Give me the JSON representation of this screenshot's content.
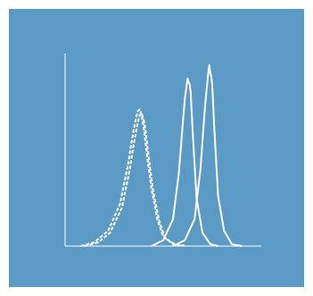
{
  "colors": {
    "panel_background": "#5a9ac4",
    "ink": "#ffffff"
  },
  "chart_data": {
    "type": "line",
    "title": "",
    "xlabel": "",
    "ylabel": "",
    "x_ticks": [],
    "y_ticks": [],
    "xlim": [
      0,
      100
    ],
    "ylim": [
      0,
      100
    ],
    "grid": false,
    "legend": "none",
    "series": [
      {
        "line_style": "dashed",
        "x": [
          8,
          15,
          22,
          28,
          32,
          34,
          36,
          37,
          38,
          39,
          40,
          42,
          44,
          47,
          50,
          55,
          60
        ],
        "y": [
          0,
          2,
          8,
          22,
          42,
          55,
          66,
          70,
          71,
          68,
          62,
          45,
          30,
          14,
          5,
          1,
          0
        ]
      },
      {
        "line_style": "dashed",
        "x": [
          10,
          17,
          23,
          29,
          33,
          35,
          37,
          38,
          39,
          40,
          41,
          43,
          45,
          48,
          51,
          56,
          62
        ],
        "y": [
          0,
          2,
          7,
          20,
          40,
          53,
          64,
          68,
          69,
          66,
          60,
          43,
          28,
          13,
          4,
          1,
          0
        ]
      },
      {
        "line_style": "solid",
        "x": [
          44,
          50,
          55,
          58,
          60,
          61,
          62,
          62.5,
          63,
          63.5,
          64,
          65,
          67,
          70,
          74,
          78
        ],
        "y": [
          0,
          3,
          14,
          38,
          64,
          76,
          84,
          87,
          85,
          84,
          80,
          60,
          25,
          7,
          1,
          0
        ]
      },
      {
        "line_style": "solid",
        "x": [
          55,
          61,
          66,
          69,
          71,
          72,
          73,
          73.5,
          74,
          74.5,
          75,
          76,
          78,
          81,
          85,
          90
        ],
        "y": [
          0,
          3,
          14,
          40,
          68,
          80,
          90,
          94,
          90,
          88,
          84,
          62,
          26,
          8,
          1,
          0
        ]
      }
    ]
  }
}
